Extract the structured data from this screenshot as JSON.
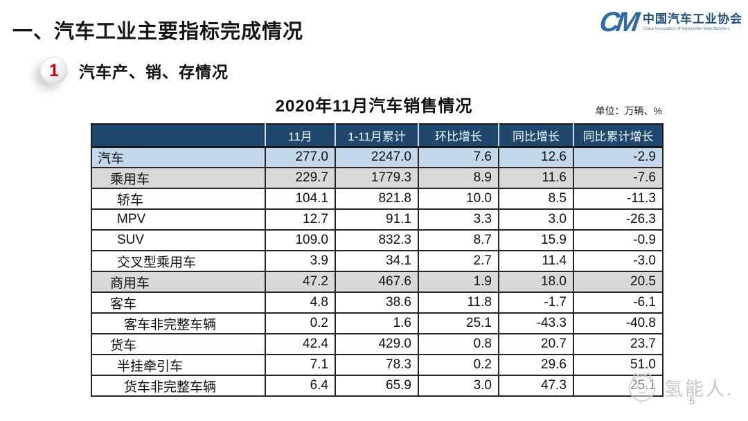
{
  "page": {
    "title": "一、汽车工业主要指标完成情况",
    "page_number": "5"
  },
  "logo": {
    "mark": "CM",
    "name_cn": "中国汽车工业协会",
    "name_en": "China Association of Automobile Manufacturers"
  },
  "section": {
    "number": "1",
    "title": "汽车产、销、存情况"
  },
  "table": {
    "title": "2020年11月汽车销售情况",
    "unit_label": "单位：万辆、%",
    "columns": [
      "",
      "11月",
      "1-11月累计",
      "环比增长",
      "同比增长",
      "同比累计增长"
    ],
    "rows": [
      {
        "label": "汽车",
        "indent": 0,
        "highlight": "blue",
        "values": [
          "277.0",
          "2247.0",
          "7.6",
          "12.6",
          "-2.9"
        ]
      },
      {
        "label": "乘用车",
        "indent": 1,
        "highlight": "gray",
        "values": [
          "229.7",
          "1779.3",
          "8.9",
          "11.6",
          "-7.6"
        ]
      },
      {
        "label": "轿车",
        "indent": 2,
        "highlight": "",
        "values": [
          "104.1",
          "821.8",
          "10.0",
          "8.5",
          "-11.3"
        ]
      },
      {
        "label": "MPV",
        "indent": 2,
        "highlight": "",
        "values": [
          "12.7",
          "91.1",
          "3.3",
          "3.0",
          "-26.3"
        ]
      },
      {
        "label": "SUV",
        "indent": 2,
        "highlight": "",
        "values": [
          "109.0",
          "832.3",
          "8.7",
          "15.9",
          "-0.9"
        ]
      },
      {
        "label": "交叉型乘用车",
        "indent": 2,
        "highlight": "",
        "values": [
          "3.9",
          "34.1",
          "2.7",
          "11.4",
          "-3.0"
        ]
      },
      {
        "label": "商用车",
        "indent": 1,
        "highlight": "gray",
        "values": [
          "47.2",
          "467.6",
          "1.9",
          "18.0",
          "20.5"
        ]
      },
      {
        "label": "客车",
        "indent": 1,
        "highlight": "",
        "values": [
          "4.8",
          "38.6",
          "11.8",
          "-1.7",
          "-6.1"
        ]
      },
      {
        "label": "客车非完整车辆",
        "indent": 3,
        "highlight": "",
        "values": [
          "0.2",
          "1.6",
          "25.1",
          "-43.3",
          "-40.8"
        ]
      },
      {
        "label": "货车",
        "indent": 1,
        "highlight": "",
        "values": [
          "42.4",
          "429.0",
          "0.8",
          "20.7",
          "23.7"
        ]
      },
      {
        "label": "半挂牵引车",
        "indent": 2,
        "highlight": "",
        "values": [
          "7.1",
          "78.3",
          "0.2",
          "29.6",
          "51.0"
        ]
      },
      {
        "label": "货车非完整车辆",
        "indent": 3,
        "highlight": "",
        "values": [
          "6.4",
          "65.9",
          "3.0",
          "47.3",
          "25.1"
        ]
      }
    ]
  },
  "watermark": {
    "icon": "cat-face-icon",
    "text": "氢能人."
  },
  "colors": {
    "header_bg": "#20486E",
    "row_highlight_blue": "#C3D8EA",
    "row_highlight_gray": "#D9D9D9",
    "accent_red": "#C00000",
    "logo_blue": "#2D6BA3",
    "border_black": "#1C1C1C",
    "watermark_gray": "#CBCBCB"
  }
}
